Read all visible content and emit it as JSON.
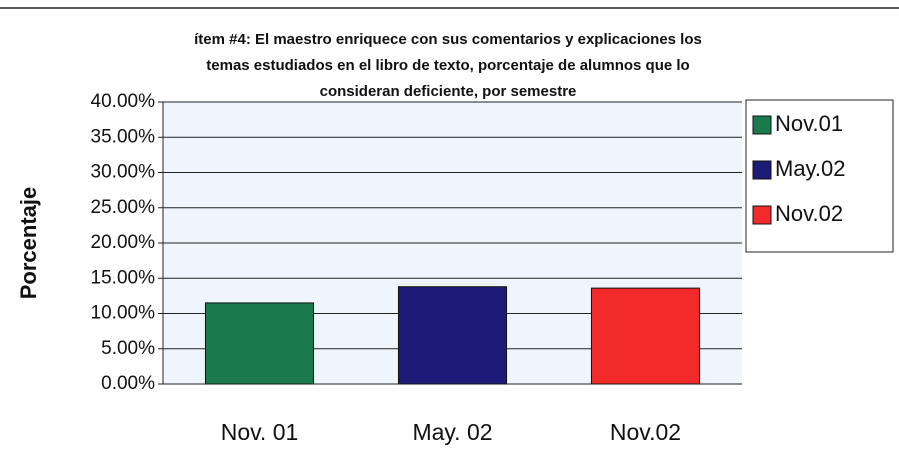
{
  "chart_data": {
    "type": "bar",
    "title": [
      "ítem #4:  El maestro enriquece con sus comentarios y explicaciones los",
      "temas estudiados en el libro de texto, porcentaje de alumnos que lo",
      "consideran deficiente, por semestre"
    ],
    "y_label": "Porcentaje",
    "categories": [
      "Nov. 01",
      "May. 02",
      "Nov.02"
    ],
    "values": [
      11.5,
      13.8,
      13.6
    ],
    "colors": [
      "#1a7a4c",
      "#1c1c78",
      "#f22a2a"
    ],
    "legend": [
      "Nov.01",
      "May.02",
      "Nov.02"
    ],
    "legend_position": "right",
    "ylim": [
      0,
      40
    ],
    "yticks": [
      {
        "value": 0,
        "label": "0.00%"
      },
      {
        "value": 5,
        "label": "5.00%"
      },
      {
        "value": 10,
        "label": "10.00%"
      },
      {
        "value": 15,
        "label": "15.00%"
      },
      {
        "value": 20,
        "label": "20.00%"
      },
      {
        "value": 25,
        "label": "25.00%"
      },
      {
        "value": 30,
        "label": "30.00%"
      },
      {
        "value": 35,
        "label": "35.00%"
      },
      {
        "value": 40,
        "label": "40.00%"
      }
    ],
    "grid": true
  }
}
